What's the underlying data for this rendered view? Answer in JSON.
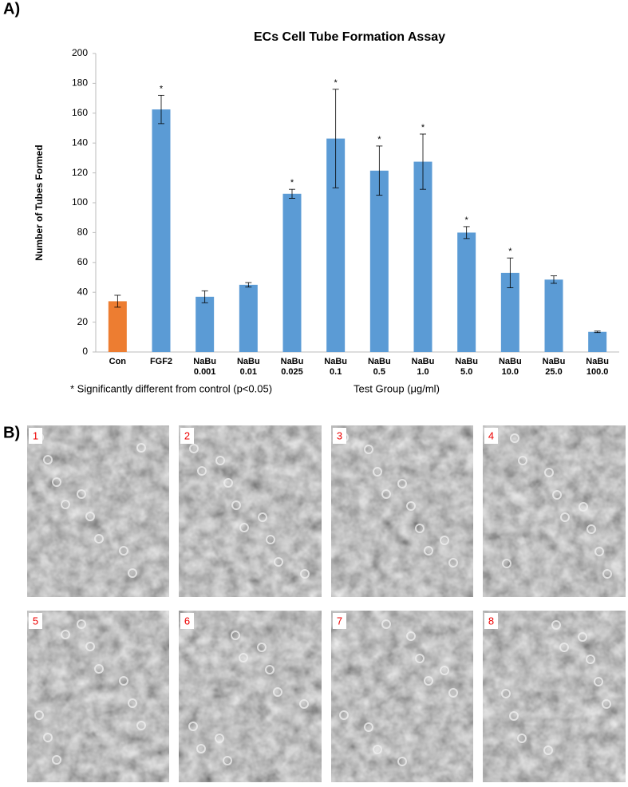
{
  "figure_labels": {
    "a": "A)",
    "b": "B)"
  },
  "chart_data": {
    "type": "bar",
    "title": "ECs Cell Tube Formation Assay",
    "y_label": "Number of Tubes Formed",
    "x_label": "Test Group (μg/ml)",
    "footnote": "* Significantly different from control (p<0.05)",
    "categories": [
      "Con",
      "FGF2",
      "NaBu 0.001",
      "NaBu 0.01",
      "NaBu 0.025",
      "NaBu 0.1",
      "NaBu 0.5",
      "NaBu 1.0",
      "NaBu 5.0",
      "NaBu 10.0",
      "NaBu 25.0",
      "NaBu 100.0"
    ],
    "values": [
      34,
      162.5,
      37,
      45,
      106,
      143,
      121.5,
      127.5,
      80,
      53,
      48.5,
      13.5
    ],
    "errors": [
      4,
      9.5,
      4,
      1.5,
      3,
      33,
      16.5,
      18.5,
      4,
      10,
      2.5,
      0.5
    ],
    "markers": [
      null,
      "*",
      null,
      null,
      "*",
      "*",
      "*",
      "*",
      "*",
      "*",
      null,
      null
    ],
    "colors": [
      "#ed7d31",
      "#5b9bd5",
      "#5b9bd5",
      "#5b9bd5",
      "#5b9bd5",
      "#5b9bd5",
      "#5b9bd5",
      "#5b9bd5",
      "#5b9bd5",
      "#5b9bd5",
      "#5b9bd5",
      "#5b9bd5"
    ],
    "ylim": [
      0,
      200
    ],
    "yticks": [
      0,
      20,
      40,
      60,
      80,
      100,
      120,
      140,
      160,
      180,
      200
    ],
    "grid": false
  },
  "micrographs": {
    "labels": [
      "1",
      "2",
      "3",
      "4",
      "5",
      "6",
      "7",
      "8"
    ]
  }
}
